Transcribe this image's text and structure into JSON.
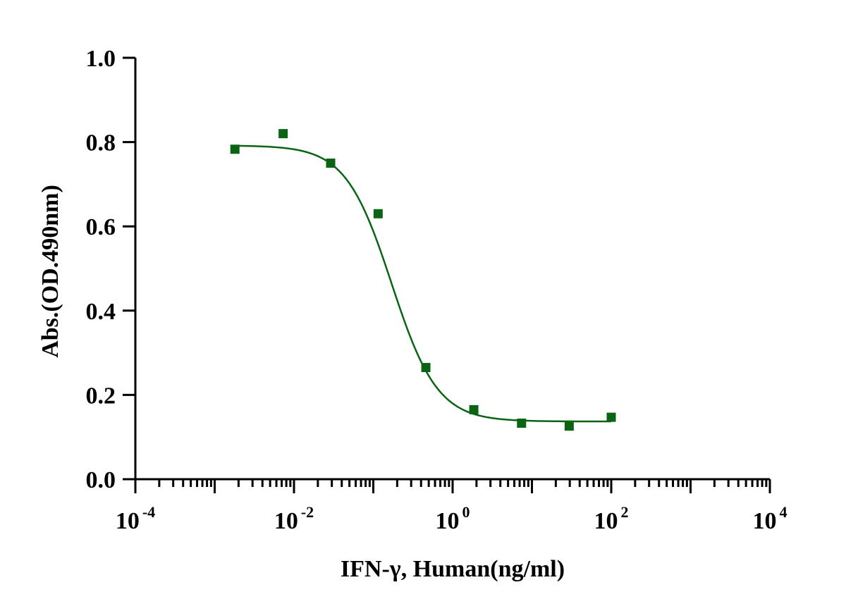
{
  "chart_data": {
    "type": "scatter",
    "title": "",
    "xlabel": "IFN-γ, Human(ng/ml)",
    "ylabel": "Abs.(OD.490nm)",
    "xscale": "log10",
    "xlim": [
      0.0001,
      10000
    ],
    "ylim": [
      0.0,
      1.0
    ],
    "x_ticks": [
      {
        "base": "10",
        "exp": "-4",
        "value": 0.0001
      },
      {
        "base": "10",
        "exp": "-2",
        "value": 0.01
      },
      {
        "base": "10",
        "exp": "0",
        "value": 1
      },
      {
        "base": "10",
        "exp": "2",
        "value": 100
      },
      {
        "base": "10",
        "exp": "4",
        "value": 10000
      }
    ],
    "y_ticks": [
      "0.0",
      "0.2",
      "0.4",
      "0.6",
      "0.8",
      "1.0"
    ],
    "grid": false,
    "legend": "none",
    "series": [
      {
        "marker": "square",
        "color": "#0a6414",
        "x": [
          0.0018,
          0.0073,
          0.029,
          0.115,
          0.46,
          1.85,
          7.4,
          29.5,
          100
        ],
        "y": [
          0.783,
          0.82,
          0.75,
          0.63,
          0.265,
          0.165,
          0.133,
          0.126,
          0.147
        ]
      }
    ],
    "fit": {
      "type": "4PL",
      "color": "#0a6414",
      "top": 0.792,
      "bottom": 0.137,
      "ec50": 0.17,
      "hill": 1.5,
      "x_range": [
        0.0018,
        100
      ]
    }
  }
}
